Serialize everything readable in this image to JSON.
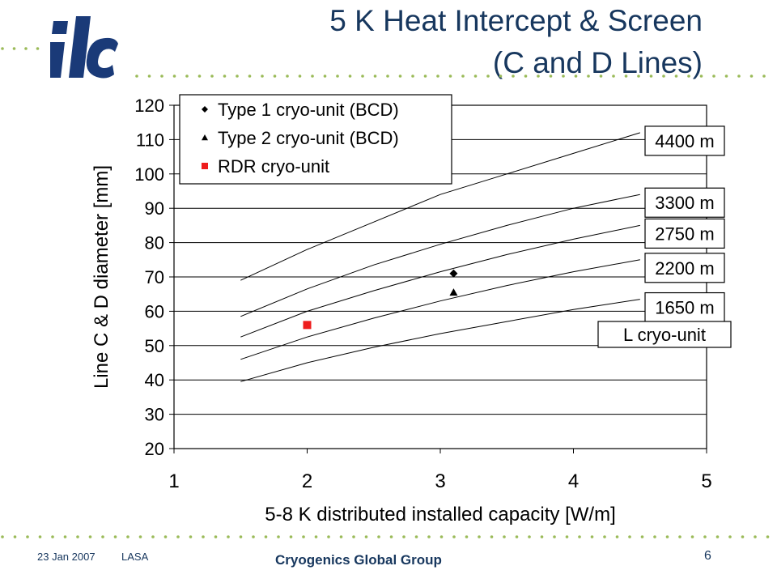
{
  "header": {
    "logo_text": "ilc",
    "title_line1": "5 K Heat Intercept & Screen",
    "title_line2": "(C and D Lines)"
  },
  "footer": {
    "date": "23 Jan 2007",
    "org": "LASA",
    "group": "Cryogenics Global Group",
    "page": "6"
  },
  "colors": {
    "title": "#17375e",
    "dots": "#9bbb59",
    "rdr_marker": "#ee1c1c",
    "logo": "#1a3a78"
  },
  "chart_data": {
    "type": "line",
    "xlabel": "5-8 K distributed installed capacity [W/m]",
    "ylabel": "Line C & D diameter [mm]",
    "xlim": [
      1,
      5
    ],
    "ylim": [
      20,
      120
    ],
    "xticks": [
      1,
      2,
      3,
      4,
      5
    ],
    "yticks": [
      20,
      30,
      40,
      50,
      60,
      70,
      80,
      90,
      100,
      110,
      120
    ],
    "grid": "horizontal",
    "series": [
      {
        "name": "4400 m",
        "x": [
          1.5,
          2,
          2.5,
          3,
          3.5,
          4,
          4.5
        ],
        "y": [
          69,
          78,
          86,
          94,
          100,
          106,
          112
        ]
      },
      {
        "name": "3300 m",
        "x": [
          1.5,
          2,
          2.5,
          3,
          3.5,
          4,
          4.5
        ],
        "y": [
          58.5,
          66.5,
          73.5,
          79.5,
          85,
          90,
          94
        ]
      },
      {
        "name": "2750 m",
        "x": [
          1.5,
          2,
          2.5,
          3,
          3.5,
          4,
          4.5
        ],
        "y": [
          52.5,
          60,
          66,
          71.5,
          76.5,
          81,
          85
        ]
      },
      {
        "name": "2200 m",
        "x": [
          1.5,
          2,
          2.5,
          3,
          3.5,
          4,
          4.5
        ],
        "y": [
          46,
          52.5,
          58,
          63,
          67.5,
          71.5,
          75
        ]
      },
      {
        "name": "1650 m",
        "x": [
          1.5,
          2,
          2.5,
          3,
          3.5,
          4,
          4.5
        ],
        "y": [
          39.5,
          45,
          49.5,
          53.5,
          57,
          60.5,
          63.5
        ]
      }
    ],
    "points": [
      {
        "name": "Type 1 cryo-unit (BCD)",
        "marker": "diamond",
        "x": 3.1,
        "y": 71,
        "color": "#000000"
      },
      {
        "name": "Type 2 cryo-unit (BCD)",
        "marker": "triangle",
        "x": 3.1,
        "y": 65.5,
        "color": "#000000"
      },
      {
        "name": "RDR cryo-unit",
        "marker": "square",
        "x": 2,
        "y": 56,
        "color": "#ee1c1c"
      }
    ],
    "legend": {
      "position": "top-left",
      "entries": [
        "Type 1 cryo-unit (BCD)",
        "Type 2 cryo-unit (BCD)",
        "RDR cryo-unit"
      ]
    },
    "annotations": [
      "L cryo-unit"
    ]
  }
}
